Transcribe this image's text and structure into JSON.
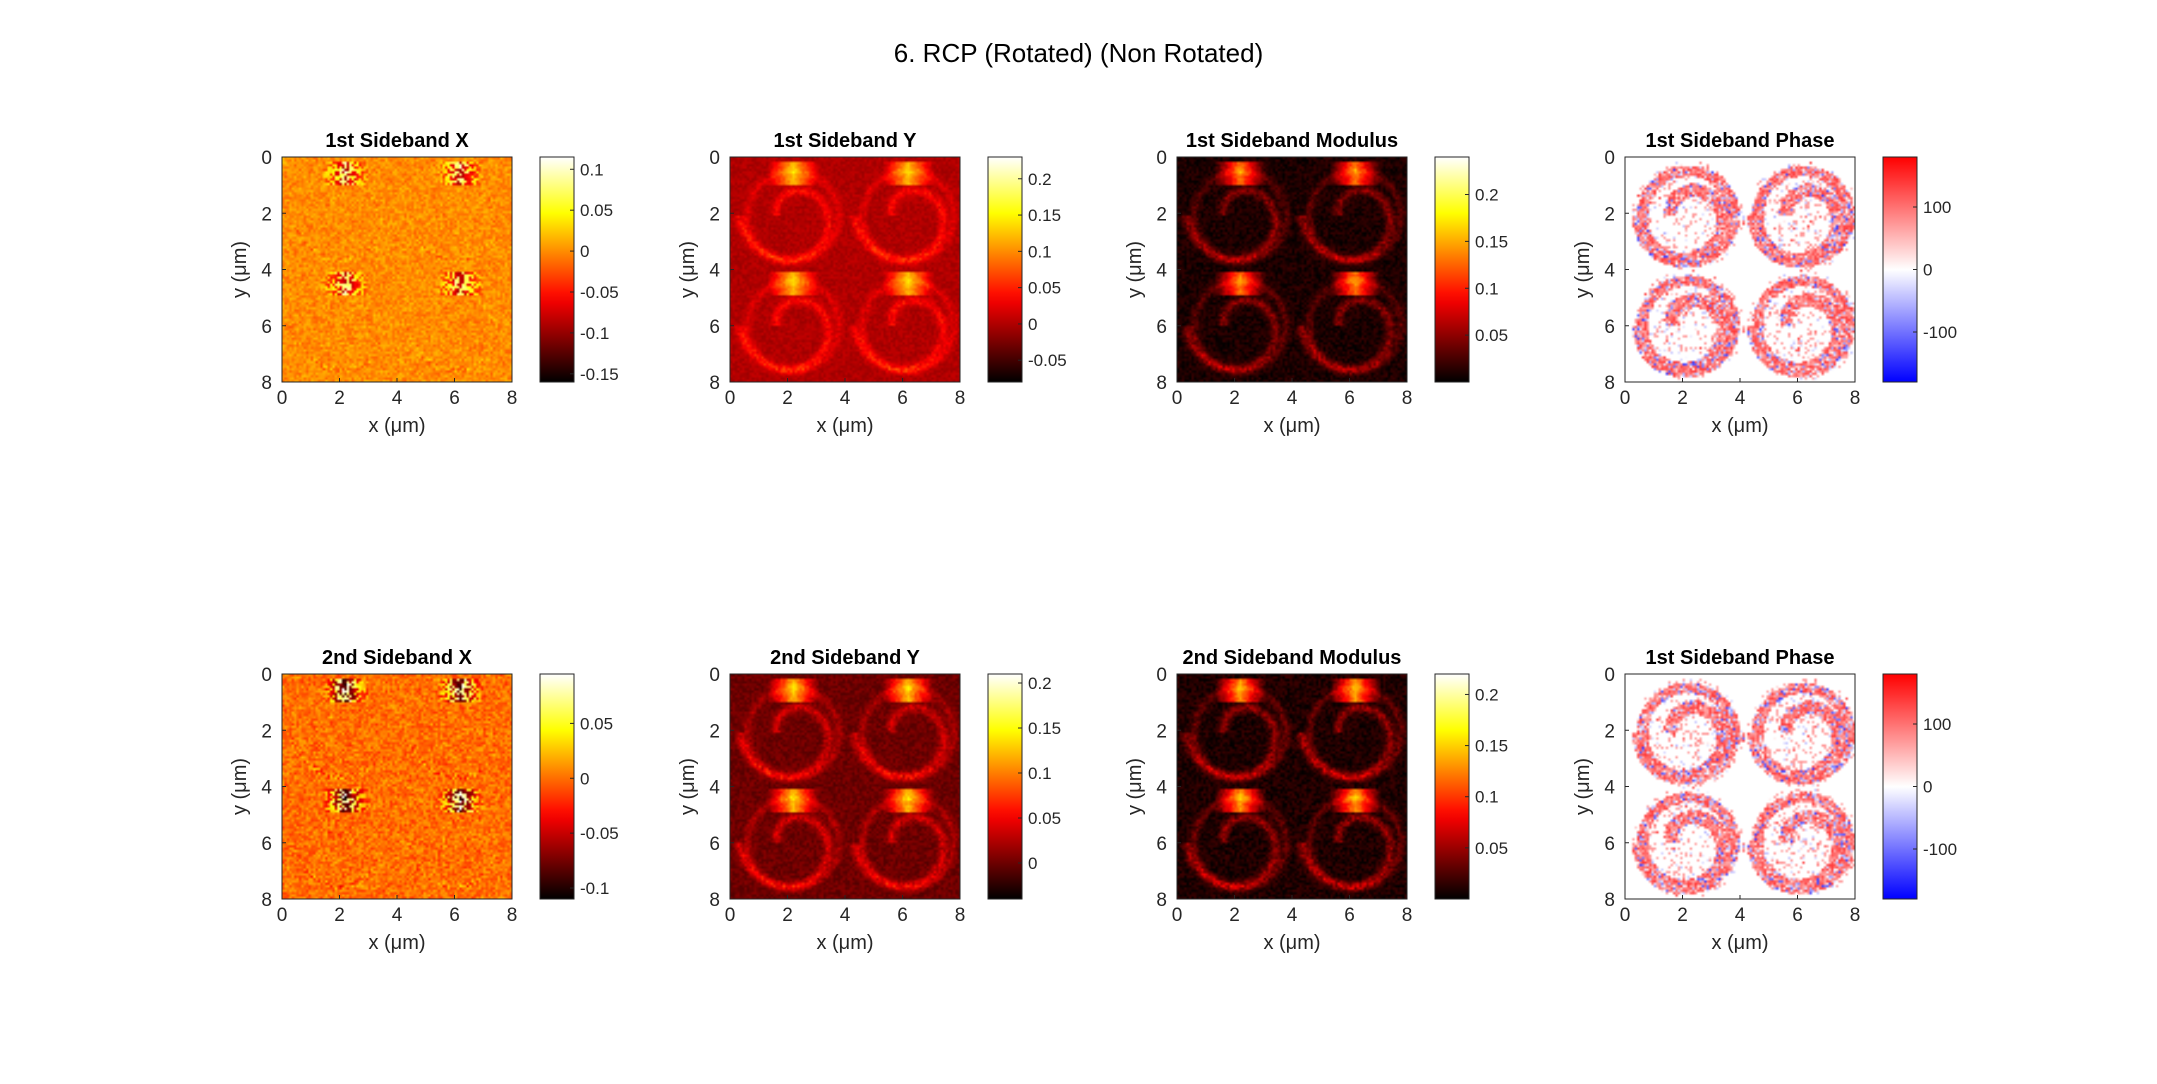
{
  "figure_title": "6. RCP (Rotated) (Non Rotated)",
  "chart_data": [
    {
      "type": "heatmap",
      "title": "1st Sideband X",
      "xlabel": "x (μm)",
      "ylabel": "y (μm)",
      "xlim": [
        0,
        8
      ],
      "ylim": [
        0,
        8
      ],
      "x_ticks": [
        0,
        2,
        4,
        6,
        8
      ],
      "y_ticks": [
        0,
        2,
        4,
        6,
        8
      ],
      "colormap": "hot",
      "background": 0.0,
      "variant": "x",
      "clim": [
        -0.16,
        0.115
      ],
      "colorbar_ticks": [
        {
          "value": 0.1,
          "label": "0.1"
        },
        {
          "value": 0.05,
          "label": "0.05"
        },
        {
          "value": 0,
          "label": "0"
        },
        {
          "value": -0.05,
          "label": "-0.05"
        },
        {
          "value": -0.1,
          "label": "-0.1"
        },
        {
          "value": -0.15,
          "label": "-0.15"
        }
      ]
    },
    {
      "type": "heatmap",
      "title": "1st Sideband Y",
      "xlabel": "x (μm)",
      "ylabel": "y (μm)",
      "xlim": [
        0,
        8
      ],
      "ylim": [
        0,
        8
      ],
      "x_ticks": [
        0,
        2,
        4,
        6,
        8
      ],
      "y_ticks": [
        0,
        2,
        4,
        6,
        8
      ],
      "colormap": "hot",
      "background": 0.0,
      "variant": "ring",
      "clim": [
        -0.08,
        0.23
      ],
      "colorbar_ticks": [
        {
          "value": 0.2,
          "label": "0.2"
        },
        {
          "value": 0.15,
          "label": "0.15"
        },
        {
          "value": 0.1,
          "label": "0.1"
        },
        {
          "value": 0.05,
          "label": "0.05"
        },
        {
          "value": 0,
          "label": "0"
        },
        {
          "value": -0.05,
          "label": "-0.05"
        }
      ]
    },
    {
      "type": "heatmap",
      "title": "1st Sideband Modulus",
      "xlabel": "x (μm)",
      "ylabel": "y (μm)",
      "xlim": [
        0,
        8
      ],
      "ylim": [
        0,
        8
      ],
      "x_ticks": [
        0,
        2,
        4,
        6,
        8
      ],
      "y_ticks": [
        0,
        2,
        4,
        6,
        8
      ],
      "colormap": "hot",
      "background": 0.01,
      "variant": "ring",
      "clim": [
        0,
        0.24
      ],
      "colorbar_ticks": [
        {
          "value": 0.2,
          "label": "0.2"
        },
        {
          "value": 0.15,
          "label": "0.15"
        },
        {
          "value": 0.1,
          "label": "0.1"
        },
        {
          "value": 0.05,
          "label": "0.05"
        }
      ]
    },
    {
      "type": "heatmap",
      "title": "1st Sideband Phase",
      "xlabel": "x (μm)",
      "ylabel": "y (μm)",
      "xlim": [
        0,
        8
      ],
      "ylim": [
        0,
        8
      ],
      "x_ticks": [
        0,
        2,
        4,
        6,
        8
      ],
      "y_ticks": [
        0,
        2,
        4,
        6,
        8
      ],
      "colormap": "bwr",
      "variant": "phase",
      "clim": [
        -180,
        180
      ],
      "colorbar_ticks": [
        {
          "value": 100,
          "label": "100"
        },
        {
          "value": 0,
          "label": "0"
        },
        {
          "value": -100,
          "label": "-100"
        }
      ]
    },
    {
      "type": "heatmap",
      "title": "2nd Sideband X",
      "xlabel": "x (μm)",
      "ylabel": "y (μm)",
      "xlim": [
        0,
        8
      ],
      "ylim": [
        0,
        8
      ],
      "x_ticks": [
        0,
        2,
        4,
        6,
        8
      ],
      "y_ticks": [
        0,
        2,
        4,
        6,
        8
      ],
      "colormap": "hot",
      "background": 0.0,
      "variant": "x",
      "clim": [
        -0.11,
        0.095
      ],
      "colorbar_ticks": [
        {
          "value": 0.05,
          "label": "0.05"
        },
        {
          "value": 0,
          "label": "0"
        },
        {
          "value": -0.05,
          "label": "-0.05"
        },
        {
          "value": -0.1,
          "label": "-0.1"
        }
      ]
    },
    {
      "type": "heatmap",
      "title": "2nd Sideband Y",
      "xlabel": "x (μm)",
      "ylabel": "y (μm)",
      "xlim": [
        0,
        8
      ],
      "ylim": [
        0,
        8
      ],
      "x_ticks": [
        0,
        2,
        4,
        6,
        8
      ],
      "y_ticks": [
        0,
        2,
        4,
        6,
        8
      ],
      "colormap": "hot",
      "background": 0.0,
      "variant": "ring",
      "clim": [
        -0.04,
        0.21
      ],
      "colorbar_ticks": [
        {
          "value": 0.2,
          "label": "0.2"
        },
        {
          "value": 0.15,
          "label": "0.15"
        },
        {
          "value": 0.1,
          "label": "0.1"
        },
        {
          "value": 0.05,
          "label": "0.05"
        },
        {
          "value": 0,
          "label": "0"
        }
      ]
    },
    {
      "type": "heatmap",
      "title": "2nd Sideband Modulus",
      "xlabel": "x (μm)",
      "ylabel": "y (μm)",
      "xlim": [
        0,
        8
      ],
      "ylim": [
        0,
        8
      ],
      "x_ticks": [
        0,
        2,
        4,
        6,
        8
      ],
      "y_ticks": [
        0,
        2,
        4,
        6,
        8
      ],
      "colormap": "hot",
      "background": 0.01,
      "variant": "ring",
      "clim": [
        0,
        0.22
      ],
      "colorbar_ticks": [
        {
          "value": 0.2,
          "label": "0.2"
        },
        {
          "value": 0.15,
          "label": "0.15"
        },
        {
          "value": 0.1,
          "label": "0.1"
        },
        {
          "value": 0.05,
          "label": "0.05"
        }
      ]
    },
    {
      "type": "heatmap",
      "title": "1st Sideband Phase",
      "xlabel": "x (μm)",
      "ylabel": "y (μm)",
      "xlim": [
        0,
        8
      ],
      "ylim": [
        0,
        8
      ],
      "x_ticks": [
        0,
        2,
        4,
        6,
        8
      ],
      "y_ticks": [
        0,
        2,
        4,
        6,
        8
      ],
      "colormap": "bwr",
      "variant": "phase",
      "clim": [
        -180,
        180
      ],
      "colorbar_ticks": [
        {
          "value": 100,
          "label": "100"
        },
        {
          "value": 0,
          "label": "0"
        },
        {
          "value": -100,
          "label": "-100"
        }
      ]
    }
  ]
}
